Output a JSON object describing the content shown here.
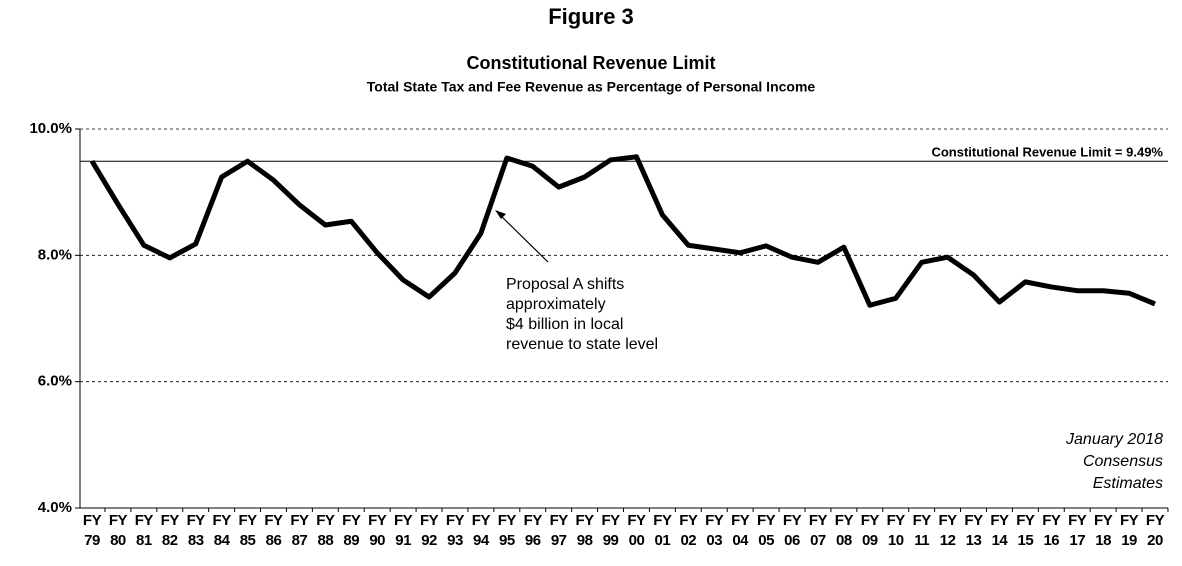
{
  "chart_data": {
    "type": "line",
    "title": "Figure 3",
    "subtitle": "Constitutional Revenue Limit",
    "subtitle2": "Total State Tax and Fee Revenue as Percentage of Personal Income",
    "categories": [
      "FY 79",
      "FY 80",
      "FY 81",
      "FY 82",
      "FY 83",
      "FY 84",
      "FY 85",
      "FY 86",
      "FY 87",
      "FY 88",
      "FY 89",
      "FY 90",
      "FY 91",
      "FY 92",
      "FY 93",
      "FY 94",
      "FY 95",
      "FY 96",
      "FY 97",
      "FY 98",
      "FY 99",
      "FY 00",
      "FY 01",
      "FY 02",
      "FY 03",
      "FY 04",
      "FY 05",
      "FY 06",
      "FY 07",
      "FY 08",
      "FY 09",
      "FY 10",
      "FY 11",
      "FY 12",
      "FY 13",
      "FY 14",
      "FY 15",
      "FY 16",
      "FY 17",
      "FY 18",
      "FY 19",
      "FY 20"
    ],
    "values": [
      9.49,
      8.81,
      8.16,
      7.96,
      8.18,
      9.24,
      9.49,
      9.19,
      8.8,
      8.48,
      8.54,
      8.04,
      7.61,
      7.34,
      7.72,
      8.35,
      9.54,
      9.41,
      9.08,
      9.24,
      9.51,
      9.56,
      8.64,
      8.16,
      8.1,
      8.04,
      8.15,
      7.97,
      7.89,
      8.13,
      7.21,
      7.32,
      7.89,
      7.97,
      7.69,
      7.26,
      7.58,
      7.5,
      7.44,
      7.44,
      7.4,
      7.23
    ],
    "color": "#000000",
    "ylim": [
      4,
      10
    ],
    "yticks": [
      {
        "value": 4,
        "label": "4.0%"
      },
      {
        "value": 6,
        "label": "6.0%"
      },
      {
        "value": 8,
        "label": "8.0%"
      },
      {
        "value": 10,
        "label": "10.0%"
      }
    ],
    "grid": true,
    "reference_line": {
      "value": 9.49,
      "label": "Constitutional Revenue Limit = 9.49%"
    },
    "annotation": [
      "Proposal A shifts",
      "approximately",
      "$4 billion in local",
      "revenue to state level"
    ],
    "note": [
      "January 2018",
      "Consensus",
      "Estimates"
    ]
  }
}
